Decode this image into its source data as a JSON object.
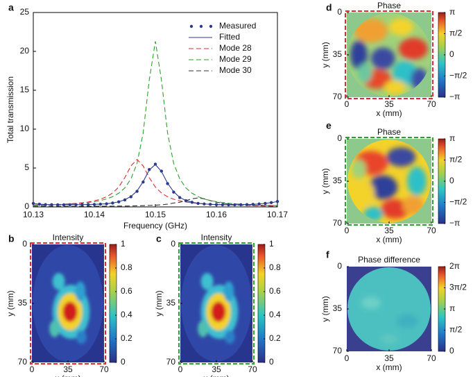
{
  "chart_data": [
    {
      "type": "line",
      "panel_label": "a",
      "xlabel": "Frequency (GHz)",
      "ylabel": "Total transmission",
      "xlim": [
        10.13,
        10.17
      ],
      "xticks": [
        10.13,
        10.14,
        10.15,
        10.16,
        10.17
      ],
      "ylim": [
        0,
        25
      ],
      "yticks": [
        0,
        5,
        10,
        15,
        20,
        25
      ],
      "legend": "upper right",
      "x": [
        10.13,
        10.131,
        10.132,
        10.133,
        10.134,
        10.135,
        10.136,
        10.137,
        10.138,
        10.139,
        10.14,
        10.141,
        10.142,
        10.143,
        10.144,
        10.145,
        10.146,
        10.147,
        10.148,
        10.149,
        10.15,
        10.151,
        10.152,
        10.153,
        10.154,
        10.155,
        10.156,
        10.157,
        10.158,
        10.159,
        10.16,
        10.161,
        10.162,
        10.163,
        10.164,
        10.165,
        10.166,
        10.167,
        10.168,
        10.169,
        10.17
      ],
      "series": [
        {
          "name": "Measured",
          "color": "#2b3990",
          "style": "markers",
          "values": [
            0.45,
            0.35,
            0.3,
            0.28,
            0.27,
            0.27,
            0.28,
            0.28,
            0.29,
            0.3,
            0.32,
            0.35,
            0.4,
            0.5,
            0.65,
            0.9,
            1.3,
            2.0,
            3.2,
            4.8,
            5.5,
            4.6,
            3.0,
            1.9,
            1.2,
            0.8,
            0.6,
            0.45,
            0.38,
            0.33,
            0.3,
            0.28,
            0.27,
            0.27,
            0.28,
            0.3,
            0.33,
            0.38,
            0.45,
            0.55,
            0.7
          ]
        },
        {
          "name": "Fitted",
          "color": "#2b3990",
          "style": "solid",
          "values": [
            0.42,
            0.35,
            0.31,
            0.29,
            0.28,
            0.28,
            0.28,
            0.29,
            0.3,
            0.31,
            0.33,
            0.36,
            0.41,
            0.5,
            0.66,
            0.92,
            1.35,
            2.05,
            3.25,
            4.75,
            5.45,
            4.55,
            3.05,
            1.95,
            1.22,
            0.82,
            0.6,
            0.46,
            0.38,
            0.33,
            0.3,
            0.28,
            0.27,
            0.27,
            0.28,
            0.3,
            0.33,
            0.38,
            0.45,
            0.55,
            0.68
          ]
        },
        {
          "name": "Mode 28",
          "color": "#e0282e",
          "style": "dashed",
          "values": [
            0.23,
            0.24,
            0.26,
            0.29,
            0.31,
            0.35,
            0.39,
            0.45,
            0.53,
            0.63,
            0.78,
            0.99,
            1.3,
            1.79,
            2.56,
            3.76,
            5.27,
            6.1,
            5.27,
            3.76,
            2.56,
            1.79,
            1.3,
            0.99,
            0.78,
            0.63,
            0.53,
            0.45,
            0.39,
            0.35,
            0.31,
            0.29,
            0.26,
            0.24,
            0.23,
            0.21,
            0.2,
            0.19,
            0.18,
            0.17,
            0.16
          ]
        },
        {
          "name": "Mode 29",
          "color": "#2ca02c",
          "style": "dashed",
          "values": [
            0.17,
            0.19,
            0.21,
            0.24,
            0.27,
            0.3,
            0.35,
            0.4,
            0.47,
            0.56,
            0.67,
            0.82,
            1.02,
            1.32,
            1.76,
            2.44,
            3.6,
            5.6,
            9.5,
            16.3,
            21.3,
            16.3,
            9.5,
            5.6,
            3.6,
            2.44,
            1.76,
            1.32,
            1.02,
            0.82,
            0.67,
            0.56,
            0.47,
            0.4,
            0.35,
            0.3,
            0.27,
            0.24,
            0.21,
            0.19,
            0.17
          ]
        },
        {
          "name": "Mode 30",
          "color": "#333333",
          "style": "dashed",
          "values": [
            0.06,
            0.07,
            0.07,
            0.07,
            0.07,
            0.07,
            0.07,
            0.07,
            0.08,
            0.08,
            0.08,
            0.09,
            0.09,
            0.1,
            0.11,
            0.11,
            0.12,
            0.14,
            0.16,
            0.19,
            0.22,
            0.27,
            0.35,
            0.5,
            0.6,
            0.81,
            1.04,
            1.15,
            1.04,
            0.81,
            0.6,
            0.5,
            0.35,
            0.27,
            0.22,
            0.19,
            0.16,
            0.14,
            0.12,
            0.11,
            0.11
          ]
        }
      ]
    },
    {
      "type": "heatmap",
      "panel_label": "b",
      "title": "Intensity",
      "xlabel": "x (mm)",
      "ylabel": "y (mm)",
      "frame_color": "#e0282e",
      "xlim": [
        0,
        70
      ],
      "xticks": [
        0,
        35,
        70
      ],
      "ylim": [
        70,
        0
      ],
      "yticks": [
        0,
        35,
        70
      ],
      "clim": [
        0,
        1
      ],
      "cticks": [
        0,
        0.2,
        0.4,
        0.6,
        0.8,
        1
      ]
    },
    {
      "type": "heatmap",
      "panel_label": "c",
      "title": "Intensity",
      "xlabel": "x (mm)",
      "ylabel": "y (mm)",
      "frame_color": "#2ca02c",
      "xlim": [
        0,
        70
      ],
      "xticks": [
        0,
        35,
        70
      ],
      "ylim": [
        70,
        0
      ],
      "yticks": [
        0,
        35,
        70
      ],
      "clim": [
        0,
        1
      ],
      "cticks": [
        0,
        0.2,
        0.4,
        0.6,
        0.8,
        1
      ]
    },
    {
      "type": "heatmap",
      "panel_label": "d",
      "title": "Phase",
      "xlabel": "x (mm)",
      "ylabel": "y (mm)",
      "frame_color": "#e0282e",
      "xlim": [
        0,
        70
      ],
      "xticks": [
        0,
        35,
        70
      ],
      "ylim": [
        70,
        0
      ],
      "yticks": [
        0,
        35,
        70
      ],
      "clim": [
        -3.14159,
        3.14159
      ],
      "cticks": [
        {
          "value": 3.14159,
          "label": "π"
        },
        {
          "value": 1.5708,
          "label": "π/2"
        },
        0,
        {
          "value": -1.5708,
          "label": "−π/2"
        },
        {
          "value": -3.14159,
          "label": "−π"
        }
      ]
    },
    {
      "type": "heatmap",
      "panel_label": "e",
      "title": "Phase",
      "xlabel": "x (mm)",
      "ylabel": "y (mm)",
      "frame_color": "#2ca02c",
      "xlim": [
        0,
        70
      ],
      "xticks": [
        0,
        35,
        70
      ],
      "ylim": [
        70,
        0
      ],
      "yticks": [
        0,
        35,
        70
      ],
      "clim": [
        -3.14159,
        3.14159
      ],
      "cticks": [
        {
          "value": 3.14159,
          "label": "π"
        },
        {
          "value": 1.5708,
          "label": "π/2"
        },
        0,
        {
          "value": -1.5708,
          "label": "−π/2"
        },
        {
          "value": -3.14159,
          "label": "−π"
        }
      ]
    },
    {
      "type": "heatmap",
      "panel_label": "f",
      "title": "Phase difference",
      "xlabel": "x (mm)",
      "ylabel": "y (mm)",
      "xlim": [
        0,
        70
      ],
      "xticks": [
        0,
        35,
        70
      ],
      "ylim": [
        70,
        0
      ],
      "yticks": [
        0,
        35,
        70
      ],
      "clim": [
        0,
        6.28319
      ],
      "cticks": [
        0,
        {
          "value": 1.5708,
          "label": "π/2"
        },
        {
          "value": 3.14159,
          "label": "π"
        },
        {
          "value": 4.71239,
          "label": "3π/2"
        },
        {
          "value": 6.28319,
          "label": "2π"
        }
      ]
    }
  ]
}
